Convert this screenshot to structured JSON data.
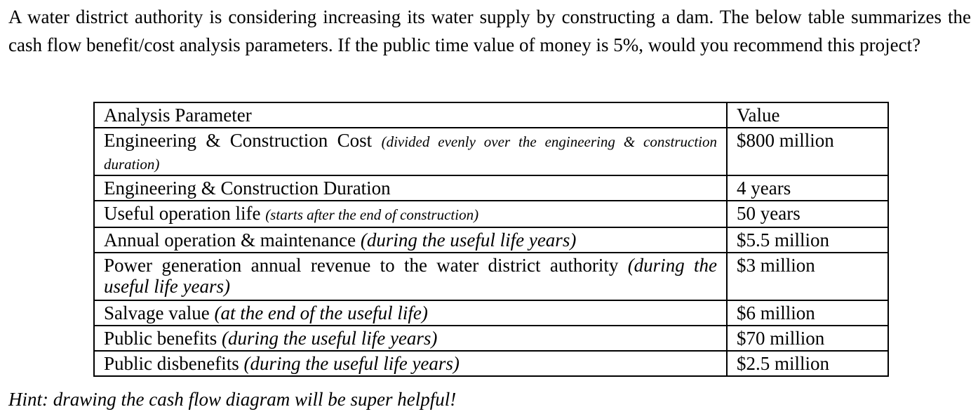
{
  "question": {
    "intro_text": "A water district authority is considering increasing its water supply by constructing a dam. The below table summarizes the cash flow benefit/cost analysis parameters. If the public time value of money is 5%, would you recommend this project?"
  },
  "table": {
    "headers": [
      "Analysis Parameter",
      "Value"
    ],
    "rows": [
      {
        "param": "Engineering & Construction Cost",
        "note": "(divided evenly over the engineering & construction duration)",
        "value": "$800 million"
      },
      {
        "param": "Engineering & Construction Duration",
        "note": "",
        "value": "4 years"
      },
      {
        "param": "Useful operation life",
        "note": "(starts after the end of construction)",
        "value": "50 years"
      },
      {
        "param": "Annual operation & maintenance",
        "note": "(during the useful life years)",
        "value": "$5.5 million"
      },
      {
        "param": "Power generation annual revenue to the water district authority",
        "note": "(during the useful life years)",
        "value": "$3 million"
      },
      {
        "param": "Salvage value",
        "note": "(at the end of the useful life)",
        "value": "$6 million"
      },
      {
        "param": "Public benefits",
        "note": "(during the useful life years)",
        "value": "$70 million"
      },
      {
        "param": "Public disbenefits",
        "note": "(during the useful life years)",
        "value": "$2.5 million"
      }
    ]
  },
  "hint": {
    "text": "Hint: drawing the cash flow diagram will be super helpful!"
  }
}
